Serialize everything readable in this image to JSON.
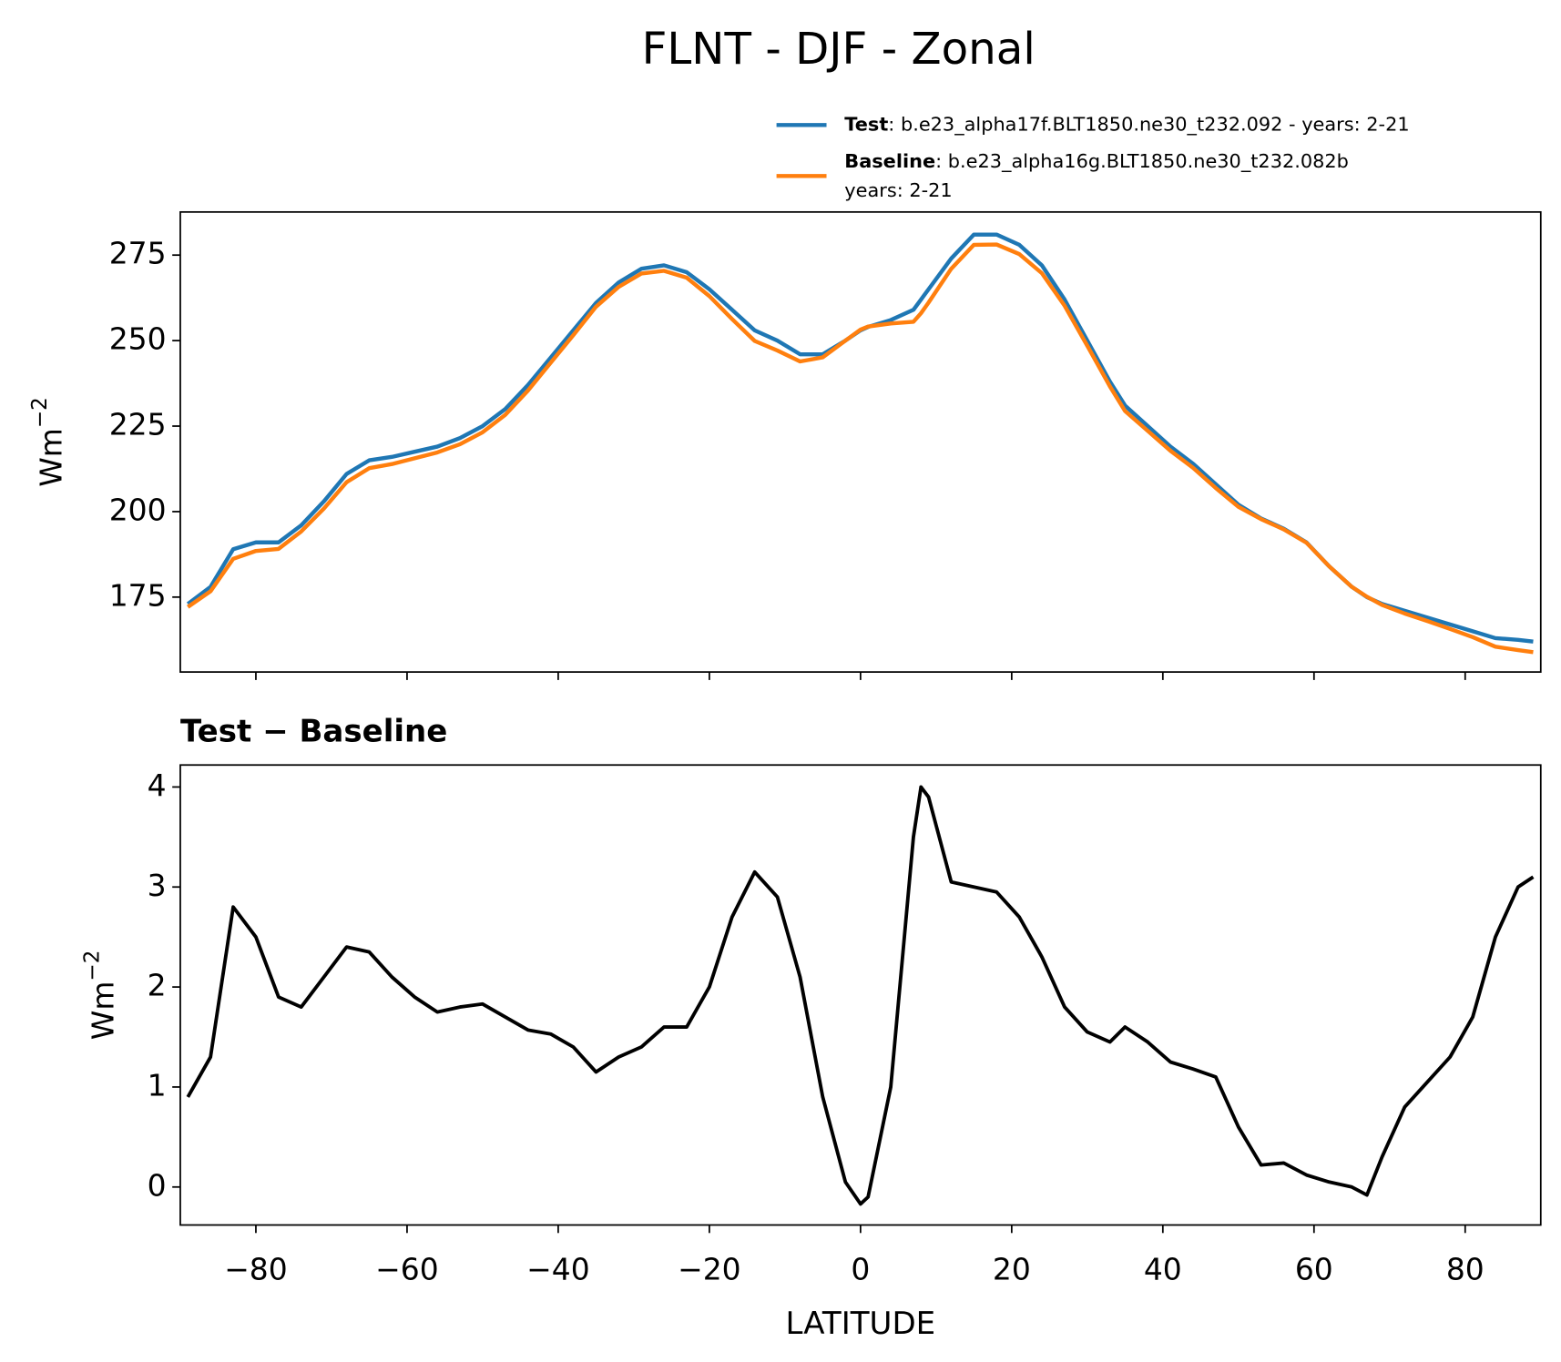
{
  "title": "FLNT - DJF - Zonal",
  "chart_data": [
    {
      "type": "line",
      "ylabel": [
        "Wm",
        "−2"
      ],
      "x": [
        -89,
        -86,
        -83,
        -80,
        -77,
        -74,
        -71,
        -68,
        -65,
        -62,
        -59,
        -56,
        -53,
        -50,
        -47,
        -44,
        -41,
        -38,
        -35,
        -32,
        -29,
        -26,
        -23,
        -20,
        -17,
        -14,
        -11,
        -8,
        -5,
        -2,
        0,
        1,
        4,
        7,
        8,
        9,
        12,
        15,
        18,
        21,
        24,
        27,
        30,
        33,
        35,
        38,
        41,
        44,
        47,
        50,
        53,
        56,
        59,
        62,
        65,
        67,
        69,
        72,
        75,
        78,
        81,
        84,
        87,
        89
      ],
      "series": [
        {
          "name": "Test",
          "label": ": b.e23_alpha17f.BLT1850.ne30_t232.092 - years: 2-21",
          "color": "#1f77b4",
          "values": [
            173,
            178,
            189,
            191,
            191,
            196,
            203,
            211,
            215,
            216,
            217.5,
            219,
            221.5,
            225,
            230,
            237,
            245,
            253,
            261,
            267,
            271,
            272,
            270,
            265,
            259,
            253,
            250,
            246,
            246,
            250,
            253,
            254,
            256,
            259,
            262,
            265,
            274,
            281,
            281,
            278,
            272,
            262,
            250,
            238,
            231,
            225,
            219,
            214,
            208,
            202,
            198,
            195,
            191,
            184,
            178,
            175,
            173,
            171,
            169,
            167,
            165,
            163,
            162.5,
            162
          ]
        },
        {
          "name": "Baseline",
          "label": ": b.e23_alpha16g.BLT1850.ne30_t232.082b",
          "label2": "years: 2-21",
          "color": "#ff7f0e",
          "values": [
            172.1,
            176.7,
            186.2,
            188.5,
            189.1,
            194.2,
            200.9,
            208.6,
            212.7,
            213.9,
            215.6,
            217.3,
            219.7,
            223.2,
            228.3,
            235.4,
            243.5,
            251.6,
            259.9,
            265.7,
            269.6,
            270.4,
            268.4,
            263,
            256.3,
            249.9,
            247.1,
            243.9,
            245.1,
            250,
            253.2,
            254.1,
            255,
            255.5,
            258,
            261.1,
            271,
            278,
            278.1,
            275.3,
            269.7,
            260.2,
            248.5,
            236.6,
            229.4,
            223.6,
            217.8,
            212.8,
            206.9,
            201.4,
            197.8,
            194.8,
            190.9,
            184,
            178,
            175.1,
            172.7,
            170.2,
            168,
            165.7,
            163.3,
            160.5,
            159.5,
            158.9
          ]
        }
      ],
      "xlim": [
        -90,
        90
      ],
      "ylim": [
        153.1,
        287.6
      ],
      "xticks": [
        -80,
        -60,
        -40,
        -20,
        0,
        20,
        40,
        60,
        80
      ],
      "xticklabels": false,
      "yticks": [
        175,
        200,
        225,
        250,
        275
      ]
    },
    {
      "type": "line",
      "title": "Test − Baseline",
      "xlabel": "LATITUDE",
      "ylabel": [
        "Wm",
        "−2"
      ],
      "x": [
        -89,
        -86,
        -83,
        -80,
        -77,
        -74,
        -71,
        -68,
        -65,
        -62,
        -59,
        -56,
        -53,
        -50,
        -47,
        -44,
        -41,
        -38,
        -35,
        -32,
        -29,
        -26,
        -23,
        -20,
        -17,
        -14,
        -11,
        -8,
        -5,
        -2,
        0,
        1,
        4,
        7,
        8,
        9,
        12,
        15,
        18,
        21,
        24,
        27,
        30,
        33,
        35,
        38,
        41,
        44,
        47,
        50,
        53,
        56,
        59,
        62,
        65,
        67,
        69,
        72,
        75,
        78,
        81,
        84,
        87,
        89
      ],
      "series": [
        {
          "color": "#000000",
          "values": [
            0.9,
            1.3,
            2.8,
            2.5,
            1.9,
            1.8,
            2.1,
            2.4,
            2.35,
            2.1,
            1.9,
            1.75,
            1.8,
            1.83,
            1.7,
            1.57,
            1.53,
            1.4,
            1.15,
            1.3,
            1.4,
            1.6,
            1.6,
            2.0,
            2.7,
            3.15,
            2.9,
            2.1,
            0.9,
            0.05,
            -0.17,
            -0.1,
            1.0,
            3.5,
            4.0,
            3.9,
            3.05,
            3.0,
            2.95,
            2.7,
            2.3,
            1.8,
            1.55,
            1.45,
            1.6,
            1.45,
            1.25,
            1.18,
            1.1,
            0.6,
            0.22,
            0.24,
            0.12,
            0.05,
            0.0,
            -0.08,
            0.3,
            0.8,
            1.05,
            1.3,
            1.7,
            2.5,
            3.0,
            3.1
          ]
        }
      ],
      "xlim": [
        -90,
        90
      ],
      "ylim": [
        -0.38,
        4.22
      ],
      "xticks": [
        {
          "value": -80,
          "label": "−80"
        },
        {
          "value": -60,
          "label": "−60"
        },
        {
          "value": -40,
          "label": "−40"
        },
        {
          "value": -20,
          "label": "−20"
        },
        0,
        20,
        40,
        60,
        80
      ],
      "xticklabels": true,
      "yticks": [
        0,
        1,
        2,
        3,
        4
      ]
    }
  ]
}
